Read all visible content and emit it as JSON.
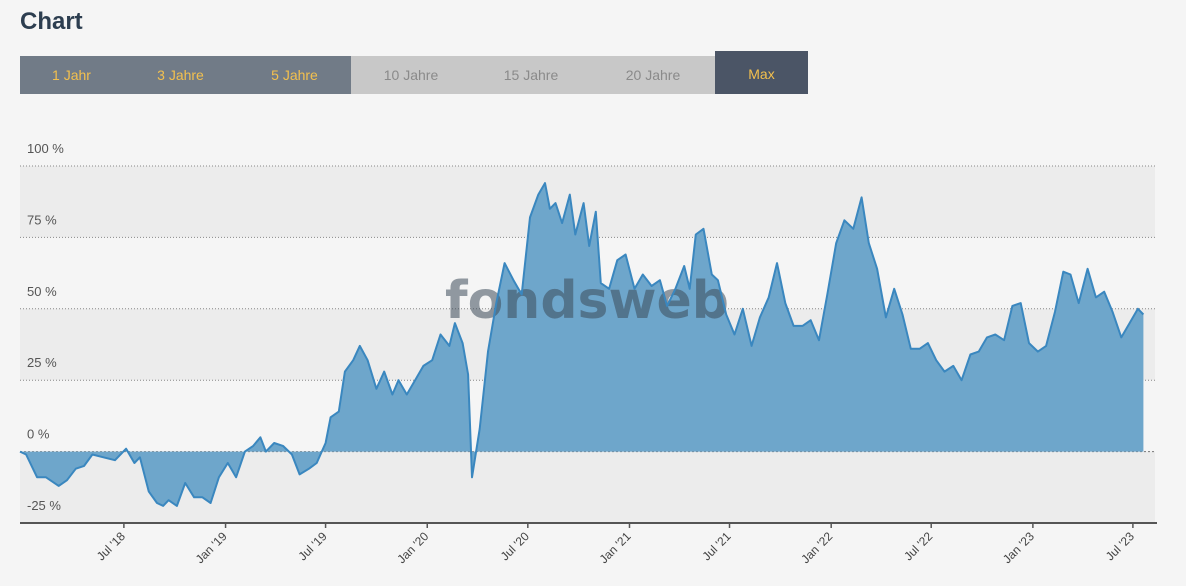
{
  "header": {
    "title": "Chart"
  },
  "range_tabs": [
    {
      "label": "1 Jahr",
      "state": "active"
    },
    {
      "label": "3 Jahre",
      "state": "active"
    },
    {
      "label": "5 Jahre",
      "state": "active"
    },
    {
      "label": "10 Jahre",
      "state": "inactive"
    },
    {
      "label": "15 Jahre",
      "state": "inactive"
    },
    {
      "label": "20 Jahre",
      "state": "inactive"
    },
    {
      "label": "Max",
      "state": "selected"
    }
  ],
  "watermark": "fondsweb",
  "colors": {
    "line": "#3a87bf",
    "fill": "#6ea6cb",
    "title": "#2d3e50",
    "tab_text": "#f3c04e"
  },
  "chart_data": {
    "type": "area",
    "title": "",
    "xlabel": "",
    "ylabel": "",
    "ylim": [
      -25,
      100
    ],
    "xlim": [
      "2017-12-25",
      "2023-08-10"
    ],
    "grid": true,
    "y_ticks": [
      {
        "value": 100,
        "label": "100 %"
      },
      {
        "value": 75,
        "label": "75 %"
      },
      {
        "value": 50,
        "label": "50 %"
      },
      {
        "value": 25,
        "label": "25 %"
      },
      {
        "value": 0,
        "label": "0 %"
      },
      {
        "value": -25,
        "label": "-25 %"
      }
    ],
    "x_ticks": [
      {
        "date": "2018-07-01",
        "label": "Jul '18"
      },
      {
        "date": "2019-01-01",
        "label": "Jan '19"
      },
      {
        "date": "2019-07-01",
        "label": "Jul '19"
      },
      {
        "date": "2020-01-01",
        "label": "Jan '20"
      },
      {
        "date": "2020-07-01",
        "label": "Jul '20"
      },
      {
        "date": "2021-01-01",
        "label": "Jan '21"
      },
      {
        "date": "2021-07-01",
        "label": "Jul '21"
      },
      {
        "date": "2022-01-01",
        "label": "Jan '22"
      },
      {
        "date": "2022-07-01",
        "label": "Jul '22"
      },
      {
        "date": "2023-01-01",
        "label": "Jan '23"
      },
      {
        "date": "2023-07-01",
        "label": "Jul '23"
      }
    ],
    "series": [
      {
        "points": [
          [
            "2017-12-25",
            0
          ],
          [
            "2018-01-05",
            -1
          ],
          [
            "2018-01-25",
            -9
          ],
          [
            "2018-02-10",
            -9
          ],
          [
            "2018-03-05",
            -12
          ],
          [
            "2018-03-20",
            -10
          ],
          [
            "2018-04-05",
            -6
          ],
          [
            "2018-04-20",
            -5
          ],
          [
            "2018-05-05",
            -1
          ],
          [
            "2018-05-25",
            -2
          ],
          [
            "2018-06-15",
            -3
          ],
          [
            "2018-07-05",
            1
          ],
          [
            "2018-07-20",
            -4
          ],
          [
            "2018-07-30",
            -2
          ],
          [
            "2018-08-15",
            -14
          ],
          [
            "2018-08-30",
            -18
          ],
          [
            "2018-09-10",
            -19
          ],
          [
            "2018-09-20",
            -17
          ],
          [
            "2018-10-05",
            -19
          ],
          [
            "2018-10-20",
            -11
          ],
          [
            "2018-11-05",
            -16
          ],
          [
            "2018-11-20",
            -16
          ],
          [
            "2018-12-05",
            -18
          ],
          [
            "2018-12-20",
            -9
          ],
          [
            "2019-01-05",
            -4
          ],
          [
            "2019-01-20",
            -9
          ],
          [
            "2019-02-05",
            0
          ],
          [
            "2019-02-20",
            2
          ],
          [
            "2019-03-05",
            5
          ],
          [
            "2019-03-15",
            0
          ],
          [
            "2019-03-30",
            3
          ],
          [
            "2019-04-15",
            2
          ],
          [
            "2019-05-01",
            -1
          ],
          [
            "2019-05-15",
            -8
          ],
          [
            "2019-06-01",
            -6
          ],
          [
            "2019-06-15",
            -4
          ],
          [
            "2019-07-01",
            3
          ],
          [
            "2019-07-10",
            12
          ],
          [
            "2019-07-25",
            14
          ],
          [
            "2019-08-05",
            28
          ],
          [
            "2019-08-20",
            32
          ],
          [
            "2019-09-01",
            37
          ],
          [
            "2019-09-15",
            32
          ],
          [
            "2019-10-01",
            22
          ],
          [
            "2019-10-15",
            28
          ],
          [
            "2019-10-30",
            20
          ],
          [
            "2019-11-10",
            25
          ],
          [
            "2019-11-25",
            20
          ],
          [
            "2019-12-10",
            25
          ],
          [
            "2019-12-25",
            30
          ],
          [
            "2020-01-10",
            32
          ],
          [
            "2020-01-25",
            41
          ],
          [
            "2020-02-10",
            37
          ],
          [
            "2020-02-20",
            45
          ],
          [
            "2020-03-05",
            38
          ],
          [
            "2020-03-15",
            27
          ],
          [
            "2020-03-22",
            -9
          ],
          [
            "2020-04-05",
            8
          ],
          [
            "2020-04-20",
            35
          ],
          [
            "2020-05-05",
            52
          ],
          [
            "2020-05-20",
            66
          ],
          [
            "2020-06-05",
            60
          ],
          [
            "2020-06-20",
            55
          ],
          [
            "2020-07-05",
            82
          ],
          [
            "2020-07-20",
            90
          ],
          [
            "2020-08-01",
            94
          ],
          [
            "2020-08-10",
            85
          ],
          [
            "2020-08-20",
            87
          ],
          [
            "2020-09-01",
            80
          ],
          [
            "2020-09-15",
            90
          ],
          [
            "2020-09-25",
            76
          ],
          [
            "2020-10-10",
            87
          ],
          [
            "2020-10-20",
            72
          ],
          [
            "2020-11-01",
            84
          ],
          [
            "2020-11-10",
            59
          ],
          [
            "2020-11-25",
            57
          ],
          [
            "2020-12-10",
            67
          ],
          [
            "2020-12-25",
            69
          ],
          [
            "2021-01-10",
            57
          ],
          [
            "2021-01-25",
            62
          ],
          [
            "2021-02-10",
            58
          ],
          [
            "2021-02-25",
            60
          ],
          [
            "2021-03-10",
            51
          ],
          [
            "2021-03-25",
            57
          ],
          [
            "2021-04-10",
            65
          ],
          [
            "2021-04-20",
            57
          ],
          [
            "2021-05-01",
            76
          ],
          [
            "2021-05-15",
            78
          ],
          [
            "2021-05-30",
            62
          ],
          [
            "2021-06-10",
            60
          ],
          [
            "2021-06-25",
            48
          ],
          [
            "2021-07-10",
            41
          ],
          [
            "2021-07-25",
            50
          ],
          [
            "2021-08-10",
            37
          ],
          [
            "2021-08-25",
            47
          ],
          [
            "2021-09-10",
            54
          ],
          [
            "2021-09-25",
            66
          ],
          [
            "2021-10-10",
            52
          ],
          [
            "2021-10-25",
            44
          ],
          [
            "2021-11-10",
            44
          ],
          [
            "2021-11-25",
            46
          ],
          [
            "2021-12-10",
            39
          ],
          [
            "2021-12-25",
            55
          ],
          [
            "2022-01-10",
            73
          ],
          [
            "2022-01-25",
            81
          ],
          [
            "2022-02-10",
            78
          ],
          [
            "2022-02-25",
            89
          ],
          [
            "2022-03-10",
            73
          ],
          [
            "2022-03-25",
            64
          ],
          [
            "2022-04-10",
            47
          ],
          [
            "2022-04-25",
            57
          ],
          [
            "2022-05-10",
            48
          ],
          [
            "2022-05-25",
            36
          ],
          [
            "2022-06-10",
            36
          ],
          [
            "2022-06-25",
            38
          ],
          [
            "2022-07-10",
            32
          ],
          [
            "2022-07-25",
            28
          ],
          [
            "2022-08-10",
            30
          ],
          [
            "2022-08-25",
            25
          ],
          [
            "2022-09-10",
            34
          ],
          [
            "2022-09-25",
            35
          ],
          [
            "2022-10-10",
            40
          ],
          [
            "2022-10-25",
            41
          ],
          [
            "2022-11-10",
            39
          ],
          [
            "2022-11-25",
            51
          ],
          [
            "2022-12-10",
            52
          ],
          [
            "2022-12-25",
            38
          ],
          [
            "2023-01-10",
            35
          ],
          [
            "2023-01-25",
            37
          ],
          [
            "2023-02-10",
            49
          ],
          [
            "2023-02-25",
            63
          ],
          [
            "2023-03-10",
            62
          ],
          [
            "2023-03-25",
            52
          ],
          [
            "2023-04-10",
            64
          ],
          [
            "2023-04-25",
            54
          ],
          [
            "2023-05-10",
            56
          ],
          [
            "2023-05-25",
            49
          ],
          [
            "2023-06-10",
            40
          ],
          [
            "2023-06-25",
            45
          ],
          [
            "2023-07-10",
            50
          ],
          [
            "2023-07-20",
            48
          ]
        ]
      }
    ]
  }
}
